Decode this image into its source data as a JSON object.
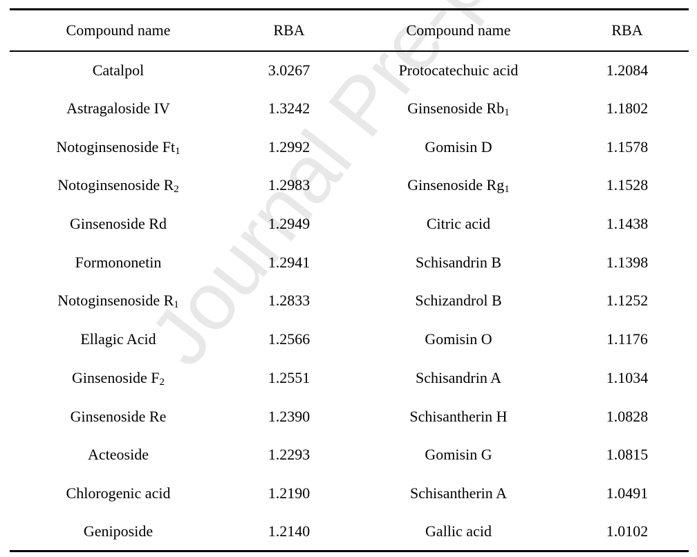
{
  "watermark": "Journal Pre-proof",
  "table": {
    "headers": [
      "Compound name",
      "RBA",
      "Compound name",
      "RBA"
    ],
    "rows": [
      {
        "left_name": "Catalpol",
        "left_sub": "",
        "left_rba": "3.0267",
        "right_name": "Protocatechuic acid",
        "right_sub": "",
        "right_rba": "1.2084"
      },
      {
        "left_name": "Astragaloside IV",
        "left_sub": "",
        "left_rba": "1.3242",
        "right_name": "Ginsenoside Rb",
        "right_sub": "1",
        "right_rba": "1.1802"
      },
      {
        "left_name": "Notoginsenoside Ft",
        "left_sub": "1",
        "left_rba": "1.2992",
        "right_name": "Gomisin D",
        "right_sub": "",
        "right_rba": "1.1578"
      },
      {
        "left_name": "Notoginsenoside R",
        "left_sub": "2",
        "left_rba": "1.2983",
        "right_name": "Ginsenoside Rg",
        "right_sub": "1",
        "right_rba": "1.1528"
      },
      {
        "left_name": "Ginsenoside Rd",
        "left_sub": "",
        "left_rba": "1.2949",
        "right_name": "Citric acid",
        "right_sub": "",
        "right_rba": "1.1438"
      },
      {
        "left_name": "Formononetin",
        "left_sub": "",
        "left_rba": "1.2941",
        "right_name": "Schisandrin B",
        "right_sub": "",
        "right_rba": "1.1398"
      },
      {
        "left_name": "Notoginsenoside R",
        "left_sub": "1",
        "left_rba": "1.2833",
        "right_name": "Schizandrol B",
        "right_sub": "",
        "right_rba": "1.1252"
      },
      {
        "left_name": "Ellagic Acid",
        "left_sub": "",
        "left_rba": "1.2566",
        "right_name": "Gomisin O",
        "right_sub": "",
        "right_rba": "1.1176"
      },
      {
        "left_name": "Ginsenoside F",
        "left_sub": "2",
        "left_rba": "1.2551",
        "right_name": "Schisandrin A",
        "right_sub": "",
        "right_rba": "1.1034"
      },
      {
        "left_name": "Ginsenoside Re",
        "left_sub": "",
        "left_rba": "1.2390",
        "right_name": "Schisantherin H",
        "right_sub": "",
        "right_rba": "1.0828"
      },
      {
        "left_name": "Acteoside",
        "left_sub": "",
        "left_rba": "1.2293",
        "right_name": "Gomisin G",
        "right_sub": "",
        "right_rba": "1.0815"
      },
      {
        "left_name": "Chlorogenic acid",
        "left_sub": "",
        "left_rba": "1.2190",
        "right_name": "Schisantherin A",
        "right_sub": "",
        "right_rba": "1.0491"
      },
      {
        "left_name": "Geniposide",
        "left_sub": "",
        "left_rba": "1.2140",
        "right_name": "Gallic acid",
        "right_sub": "",
        "right_rba": "1.0102"
      }
    ]
  }
}
